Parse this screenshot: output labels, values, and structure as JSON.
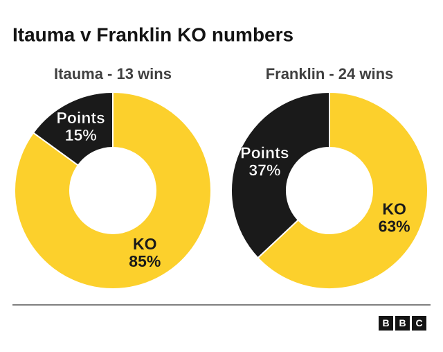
{
  "title": "Itauma v Franklin KO numbers",
  "logo": [
    "B",
    "B",
    "C"
  ],
  "chart_data": [
    {
      "type": "donut",
      "title": "Itauma - 13 wins",
      "categories": [
        "KO",
        "Points"
      ],
      "values": [
        85,
        15
      ],
      "value_labels": [
        "85%",
        "15%"
      ],
      "colors": [
        "#fcd02c",
        "#1a1a1a"
      ],
      "label_colors": [
        "#1a1a1a",
        "#ffffff"
      ]
    },
    {
      "type": "donut",
      "title": "Franklin - 24 wins",
      "categories": [
        "KO",
        "Points"
      ],
      "values": [
        63,
        37
      ],
      "value_labels": [
        "63%",
        "37%"
      ],
      "colors": [
        "#fcd02c",
        "#1a1a1a"
      ],
      "label_colors": [
        "#1a1a1a",
        "#ffffff"
      ]
    }
  ]
}
